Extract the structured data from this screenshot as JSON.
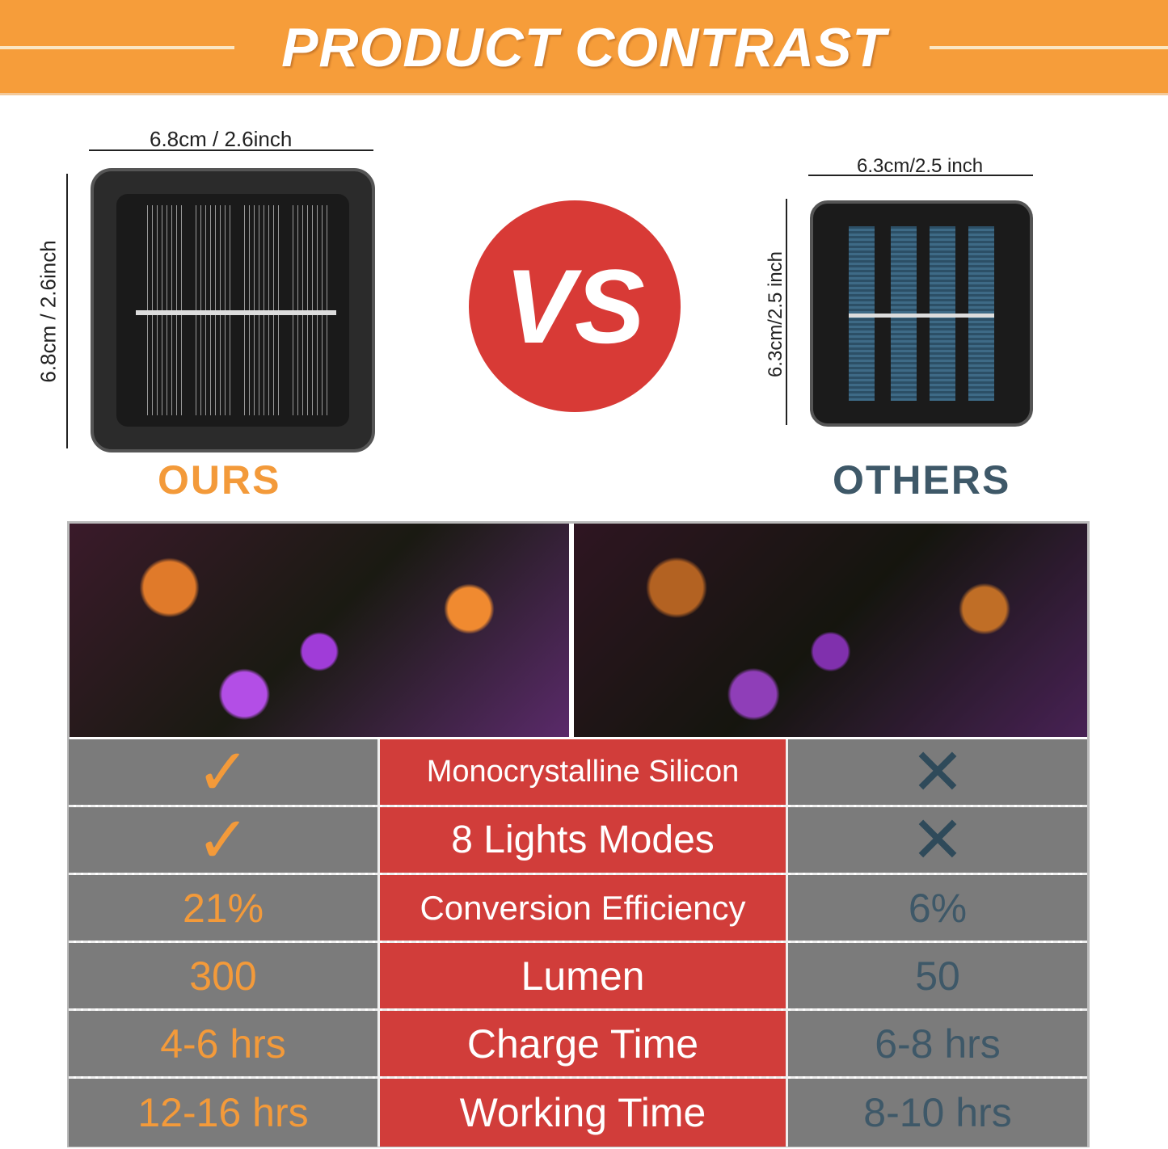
{
  "header": {
    "title": "PRODUCT CONTRAST"
  },
  "ours": {
    "label": "OURS",
    "width_dim": "6.8cm / 2.6inch",
    "height_dim": "6.8cm / 2.6inch"
  },
  "vs": "VS",
  "others": {
    "label": "OTHERS",
    "width_dim": "6.3cm/2.5 inch",
    "height_dim": "6.3cm/2.5 inch"
  },
  "colors": {
    "orange": "#f69d3a",
    "red": "#d13d3a",
    "gray": "#7b7b7b",
    "slate": "#3e5868"
  },
  "table": {
    "rows": [
      {
        "ours": "check-icon",
        "feature": "Monocrystalline Silicon",
        "others": "cross-icon"
      },
      {
        "ours": "check-icon",
        "feature": "8 Lights Modes",
        "others": "cross-icon"
      },
      {
        "ours": "21%",
        "feature": "Conversion Efficiency",
        "others": "6%"
      },
      {
        "ours": "300",
        "feature": "Lumen",
        "others": "50"
      },
      {
        "ours": "4-6 hrs",
        "feature": "Charge Time",
        "others": "6-8 hrs"
      },
      {
        "ours": "12-16 hrs",
        "feature": "Working Time",
        "others": "8-10 hrs"
      }
    ]
  }
}
